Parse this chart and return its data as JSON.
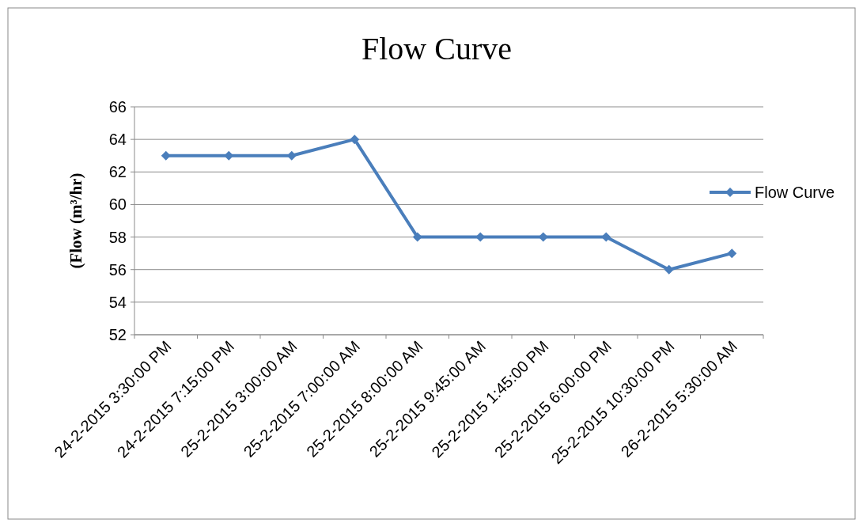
{
  "chart_data": {
    "type": "line",
    "title": "Flow Curve",
    "ylabel": "(Flow (m³/hr)",
    "categories": [
      "24-2-2015 3:30:00 PM",
      "24-2-2015 7:15:00 PM",
      "25-2-2015 3:00:00 AM",
      "25-2-2015 7:00:00 AM",
      "25-2-2015 8:00:00 AM",
      "25-2-2015 9:45:00 AM",
      "25-2-2015 1:45:00 PM",
      "25-2-2015 6:00:00 PM",
      "25-2-2015 10:30:00 PM",
      "26-2-2015 5:30:00 AM"
    ],
    "series": [
      {
        "name": "Flow Curve",
        "color": "#4a7ebb",
        "values": [
          63,
          63,
          63,
          64,
          58,
          58,
          58,
          58,
          56,
          57
        ]
      }
    ],
    "ylim": [
      52,
      66
    ],
    "yticks": [
      52,
      54,
      56,
      58,
      60,
      62,
      64,
      66
    ],
    "grid": "y",
    "legend": "right",
    "marker": "diamond",
    "line_style": "solid"
  }
}
